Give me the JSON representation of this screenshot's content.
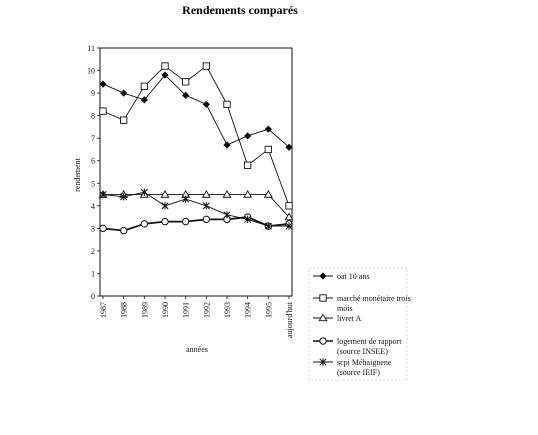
{
  "chart_data": {
    "type": "line",
    "title": "Rendements comparés",
    "xlabel": "années",
    "ylabel": "rendement",
    "categories": [
      "1987",
      "1988",
      "1989",
      "1990",
      "1991",
      "1992",
      "1993",
      "1994",
      "1995",
      "aujourd'hui"
    ],
    "ylim": [
      0,
      11
    ],
    "yticks": [
      "0",
      "1",
      "2",
      "3",
      "4",
      "5",
      "6",
      "7",
      "8",
      "9",
      "10",
      "11"
    ],
    "grid": false,
    "legend_position": "bottom-right",
    "series": [
      {
        "name": "oat 10 ans",
        "marker": "diamond-filled",
        "line": "solid",
        "values": [
          9.4,
          9.0,
          8.7,
          9.8,
          8.9,
          8.5,
          6.7,
          7.1,
          7.4,
          6.6
        ]
      },
      {
        "name": "marché monétaire trois mois",
        "marker": "square-open",
        "line": "solid",
        "values": [
          8.2,
          7.8,
          9.3,
          10.2,
          9.5,
          10.2,
          8.5,
          5.8,
          6.5,
          4.0
        ]
      },
      {
        "name": "livret A",
        "marker": "triangle-open",
        "line": "solid",
        "values": [
          4.5,
          4.5,
          4.5,
          4.5,
          4.5,
          4.5,
          4.5,
          4.5,
          4.5,
          3.5
        ]
      },
      {
        "name": "logement de rapport (source INSEE)",
        "marker": "circle-open",
        "line": "thick",
        "values": [
          3.0,
          2.9,
          3.2,
          3.3,
          3.3,
          3.4,
          3.4,
          3.5,
          3.1,
          3.2
        ]
      },
      {
        "name": "scpi Méhaignene (source IEIF)",
        "marker": "star",
        "line": "solid",
        "values": [
          4.5,
          4.4,
          4.6,
          4.0,
          4.3,
          4.0,
          3.6,
          3.4,
          3.1,
          3.1
        ]
      }
    ]
  }
}
